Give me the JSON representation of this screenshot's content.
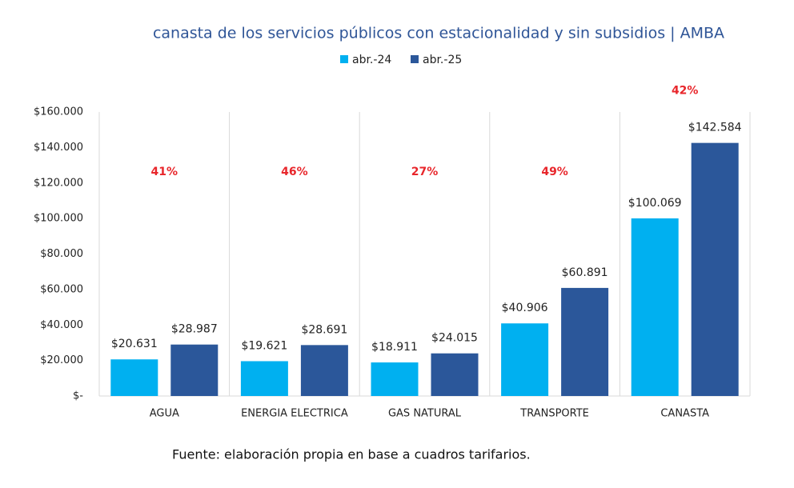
{
  "chart_data": {
    "type": "bar",
    "title": "canasta de los servicios públicos con estacionalidad y sin subsidios | AMBA",
    "categories": [
      "AGUA",
      "ENERGIA ELECTRICA",
      "GAS NATURAL",
      "TRANSPORTE",
      "CANASTA"
    ],
    "series": [
      {
        "name": "abr.-24",
        "color": "#00b0f0",
        "values": [
          20631,
          19621,
          18911,
          40906,
          100069
        ],
        "value_labels": [
          "$20.631",
          "$19.621",
          "$18.911",
          "$40.906",
          "$100.069"
        ]
      },
      {
        "name": "abr.-25",
        "color": "#2b579a",
        "values": [
          28987,
          28691,
          24015,
          60891,
          142584
        ],
        "value_labels": [
          "$28.987",
          "$28.691",
          "$24.015",
          "$60.891",
          "$142.584"
        ]
      }
    ],
    "change_labels": [
      "41%",
      "46%",
      "27%",
      "49%",
      "42%"
    ],
    "ylim": [
      0,
      160000
    ],
    "yticks": [
      {
        "value": 0,
        "label": "$-"
      },
      {
        "value": 20000,
        "label": "$20.000"
      },
      {
        "value": 40000,
        "label": "$40.000"
      },
      {
        "value": 60000,
        "label": "$60.000"
      },
      {
        "value": 80000,
        "label": "$80.000"
      },
      {
        "value": 100000,
        "label": "$100.000"
      },
      {
        "value": 120000,
        "label": "$120.000"
      },
      {
        "value": 140000,
        "label": "$140.000"
      },
      {
        "value": 160000,
        "label": "$160.000"
      }
    ],
    "legend": "top",
    "source": "Fuente: elaboración propia en base a cuadros tarifarios."
  }
}
